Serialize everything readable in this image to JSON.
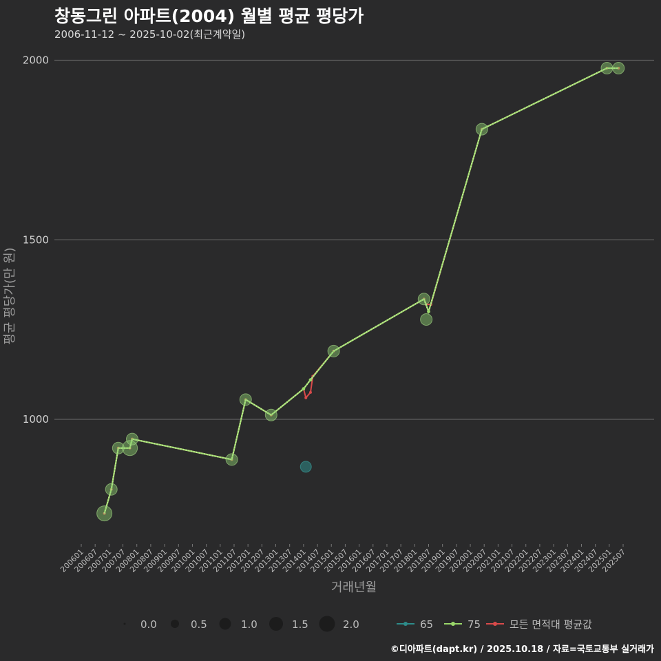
{
  "title": "창동그린 아파트(2004) 월별 평균 평당가",
  "subtitle": "2006-11-12 ~ 2025-10-02(최근계약일)",
  "credit": "©디아파트(dapt.kr) / 2025.10.18 / 자료=국토교통부 실거래가",
  "chart_data": {
    "type": "line",
    "xlabel": "거래년월",
    "ylabel": "평균 평당가(만 원)",
    "ylim": [
      660,
      2050
    ],
    "yticks": [
      1000,
      1500,
      2000
    ],
    "x_start": "2006-01",
    "x_end": "2025-12",
    "x_ticks": [
      "200601",
      "200607",
      "200701",
      "200707",
      "200801",
      "200807",
      "200901",
      "200907",
      "201001",
      "201007",
      "201101",
      "201107",
      "201201",
      "201207",
      "201301",
      "201307",
      "201401",
      "201407",
      "201501",
      "201507",
      "201601",
      "201607",
      "201701",
      "201707",
      "201801",
      "201807",
      "201901",
      "201907",
      "202001",
      "202007",
      "202101",
      "202107",
      "202201",
      "202207",
      "202301",
      "202307",
      "202401",
      "202407",
      "202501",
      "202507"
    ],
    "series": [
      {
        "name": "65",
        "color": "#2d8c8a",
        "line": false,
        "points": [
          {
            "x": "2014-02",
            "y": 868,
            "count": 1
          }
        ]
      },
      {
        "name": "75",
        "color": "#9ad86a",
        "points": [
          {
            "x": "2006-11",
            "y": 738,
            "count": 2
          },
          {
            "x": "2007-02",
            "y": 805,
            "count": 1
          },
          {
            "x": "2007-05",
            "y": 920,
            "count": 1
          },
          {
            "x": "2007-10",
            "y": 920,
            "count": 2
          },
          {
            "x": "2007-11",
            "y": 945,
            "count": 1
          },
          {
            "x": "2011-06",
            "y": 888,
            "count": 1
          },
          {
            "x": "2011-12",
            "y": 1055,
            "count": 1
          },
          {
            "x": "2012-11",
            "y": 1012,
            "count": 1
          },
          {
            "x": "2014-01",
            "y": 1085,
            "count": 0
          },
          {
            "x": "2014-04",
            "y": 1110,
            "count": 0
          },
          {
            "x": "2015-02",
            "y": 1190,
            "count": 1
          },
          {
            "x": "2018-05",
            "y": 1335,
            "count": 1
          },
          {
            "x": "2018-06",
            "y": 1278,
            "count": 1
          },
          {
            "x": "2018-07",
            "y": 1300,
            "count": 0
          },
          {
            "x": "2020-06",
            "y": 1808,
            "count": 1
          },
          {
            "x": "2024-12",
            "y": 1978,
            "count": 1
          },
          {
            "x": "2025-05",
            "y": 1978,
            "count": 1
          }
        ]
      },
      {
        "name": "모든 면적대 평균값",
        "color": "#d94a4a",
        "points": [
          {
            "x": "2006-11",
            "y": 738
          },
          {
            "x": "2007-02",
            "y": 805
          },
          {
            "x": "2007-05",
            "y": 920
          },
          {
            "x": "2007-10",
            "y": 920
          },
          {
            "x": "2007-11",
            "y": 945
          },
          {
            "x": "2011-06",
            "y": 888
          },
          {
            "x": "2011-12",
            "y": 1055
          },
          {
            "x": "2012-11",
            "y": 1012
          },
          {
            "x": "2014-01",
            "y": 1085
          },
          {
            "x": "2014-02",
            "y": 1060
          },
          {
            "x": "2014-04",
            "y": 1075
          },
          {
            "x": "2014-05",
            "y": 1120
          },
          {
            "x": "2015-02",
            "y": 1190
          },
          {
            "x": "2018-05",
            "y": 1335
          },
          {
            "x": "2018-06",
            "y": 1320
          },
          {
            "x": "2018-08",
            "y": 1320
          },
          {
            "x": "2020-06",
            "y": 1808
          },
          {
            "x": "2024-12",
            "y": 1978
          },
          {
            "x": "2025-05",
            "y": 1978
          }
        ]
      }
    ],
    "size_legend": {
      "labels": [
        "0.0",
        "0.5",
        "1.0",
        "1.5",
        "2.0"
      ],
      "values": [
        0,
        0.5,
        1.0,
        1.5,
        2.0
      ]
    },
    "legend_position": "bottom"
  }
}
